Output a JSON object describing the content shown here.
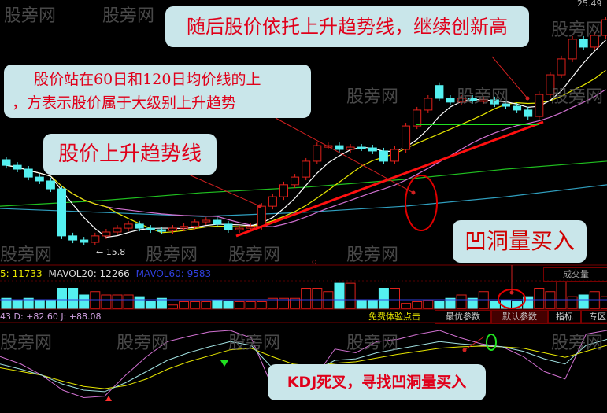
{
  "chart_data": {
    "type": "candlestick",
    "price_high_label": "25.49",
    "price_low_label": "15.8",
    "close": [
      19.18,
      19.03,
      18.72,
      18.57,
      18.26,
      16.42,
      16.26,
      16.17,
      16.42,
      16.57,
      16.72,
      16.88,
      16.72,
      16.66,
      16.63,
      16.72,
      16.79,
      16.97,
      17.03,
      16.88,
      16.66,
      16.72,
      16.79,
      17.58,
      17.95,
      18.42,
      18.72,
      19.34,
      19.95,
      19.95,
      19.8,
      19.89,
      19.86,
      19.74,
      19.34,
      19.8,
      20.72,
      21.34,
      21.8,
      21.8,
      21.65,
      21.8,
      21.71,
      21.74,
      21.58,
      21.49,
      21.34,
      21.09,
      21.95,
      22.72,
      23.34,
      24.11,
      23.8,
      24.26,
      24.87
    ],
    "open": [
      19.4,
      19.18,
      19.03,
      18.72,
      18.57,
      18.26,
      16.42,
      16.26,
      16.17,
      16.42,
      16.57,
      16.72,
      16.88,
      16.72,
      16.66,
      16.63,
      16.72,
      16.79,
      16.97,
      17.03,
      16.88,
      16.66,
      16.72,
      16.79,
      17.58,
      17.95,
      18.42,
      18.72,
      19.34,
      19.95,
      19.95,
      19.8,
      19.89,
      19.86,
      19.74,
      19.34,
      19.8,
      20.72,
      21.34,
      22.3,
      21.8,
      21.65,
      21.8,
      21.71,
      21.74,
      21.58,
      21.49,
      21.34,
      21.09,
      21.95,
      22.72,
      23.34,
      24.11,
      23.8,
      24.26
    ],
    "ma60": [
      17.58,
      17.8,
      18.11,
      18.32,
      18.63,
      19.03,
      19.34
    ],
    "ma120": [
      17.49,
      17.34,
      17.18,
      17.34,
      17.58,
      17.95,
      18.42
    ],
    "volume": {
      "header_left": "5: 11733",
      "mavol20": "MAVOL20: 12266",
      "mavol60": "MAVOL60: 9583",
      "title": "成交量",
      "values": [
        6,
        5,
        6,
        5,
        5,
        12,
        12,
        8,
        10,
        8,
        8,
        8,
        7,
        4,
        6,
        2,
        4,
        4,
        4,
        5,
        4,
        4,
        4,
        4,
        6,
        6,
        6,
        12,
        12,
        10,
        15,
        15,
        5,
        5,
        12,
        12,
        3,
        4,
        5,
        4,
        6,
        8,
        6,
        10,
        4,
        5,
        4,
        7,
        12,
        10,
        16,
        7,
        8,
        10,
        7
      ]
    },
    "kdj": {
      "header": "43 D: +82.60 J: +88.08",
      "K": [
        55,
        48,
        40,
        28,
        20,
        18,
        30,
        45,
        60,
        70,
        78,
        85,
        80,
        50,
        40,
        45,
        60,
        62,
        70,
        75,
        80,
        85,
        82,
        80,
        78,
        72,
        62,
        55,
        80,
        88
      ],
      "D": [
        50,
        45,
        40,
        32,
        25,
        22,
        26,
        35,
        48,
        58,
        66,
        74,
        76,
        65,
        55,
        52,
        56,
        58,
        63,
        68,
        72,
        76,
        78,
        79,
        78,
        76,
        70,
        64,
        72,
        80
      ],
      "J": [
        65,
        55,
        40,
        20,
        10,
        12,
        40,
        65,
        85,
        92,
        98,
        100,
        90,
        25,
        20,
        35,
        75,
        70,
        85,
        88,
        95,
        100,
        90,
        82,
        78,
        65,
        45,
        35,
        95,
        100
      ]
    }
  },
  "annotations": {
    "new_high": "随后股价依托上升趋势线，继续创新高",
    "ma_line1": "股价站在60日和120日均价线的上",
    "ma_line2": "，方表示股价属于大级别上升趋势",
    "trendline": "股价上升趋势线",
    "dip_volume": "凹洞量买入",
    "kdj_cross": "KDJ死叉，寻找凹洞量买入",
    "marker_q": "q"
  },
  "tabs": [
    "免费体验点击",
    "最优参数",
    "默认参数",
    "指标",
    "专区"
  ],
  "watermark": "股旁网",
  "colors": {
    "up": "#e0201a",
    "down": "#54f0f0",
    "ma5": "#ffffff",
    "ma10": "#e6e600",
    "ma20": "#d070d0",
    "ma60": "#20c020",
    "ma120": "#30a0c0"
  }
}
